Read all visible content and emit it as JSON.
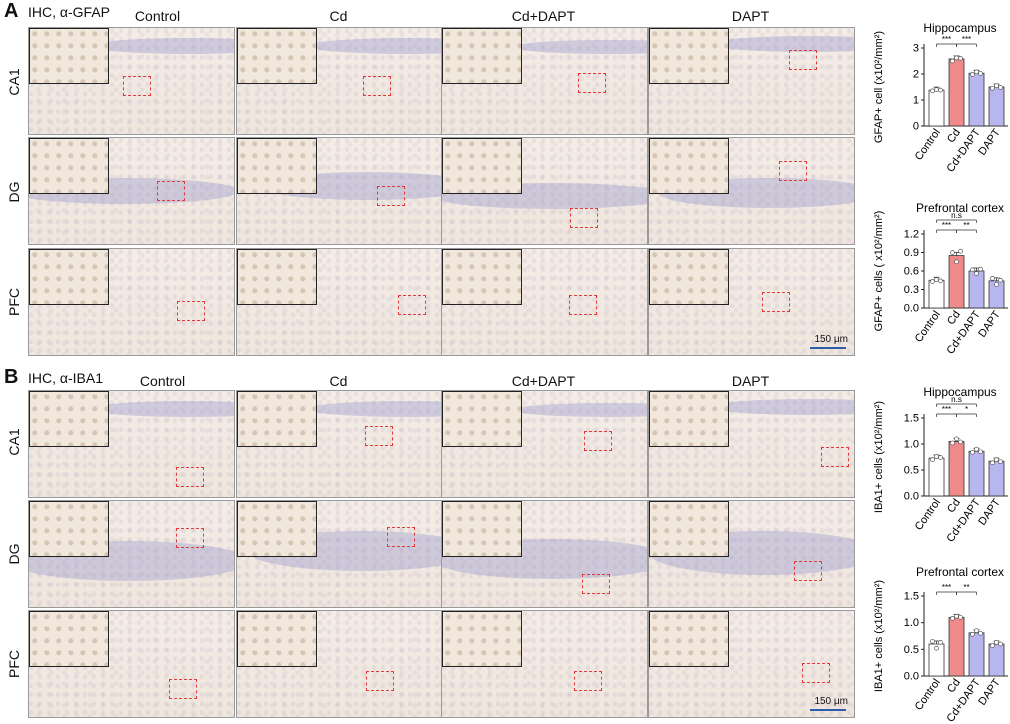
{
  "panels": [
    {
      "letter": "A",
      "stain_label": "IHC, α-GFAP",
      "columns": [
        "Control",
        "Cd",
        "Cd+DAPT",
        "DAPT"
      ],
      "rows": [
        "CA1",
        "DG",
        "PFC"
      ],
      "scale_bar_label": "150 μm"
    },
    {
      "letter": "B",
      "stain_label": "IHC, α-IBA1",
      "columns": [
        "Control",
        "Cd",
        "Cd+DAPT",
        "DAPT"
      ],
      "rows": [
        "CA1",
        "DG",
        "PFC"
      ],
      "scale_bar_label": "150 μm"
    }
  ],
  "colors": {
    "Control": "#ffffff",
    "Cd": "#f08a8a",
    "Cd+DAPT": "#b8b6ee",
    "DAPT": "#b8b6ee",
    "outline": "#333333",
    "roi": "#e03a3a",
    "scale_bar": "#2a5caa"
  },
  "chart_data": [
    {
      "type": "bar",
      "title": "Hippocampus",
      "ylabel": "GFAP+ cell (x10²/mm²)",
      "categories": [
        "Control",
        "Cd",
        "Cd+DAPT",
        "DAPT"
      ],
      "values": [
        1.38,
        2.58,
        2.03,
        1.5
      ],
      "points": [
        [
          1.35,
          1.4,
          1.38
        ],
        [
          2.5,
          2.62,
          2.6
        ],
        [
          1.98,
          2.08,
          2.02
        ],
        [
          1.45,
          1.55,
          1.48
        ]
      ],
      "ylim": [
        0,
        3
      ],
      "yticks": [
        "0",
        "1",
        "2",
        "3"
      ],
      "significance": [
        {
          "from": 0,
          "to": 1,
          "label": "***"
        },
        {
          "from": 1,
          "to": 2,
          "label": "***"
        }
      ]
    },
    {
      "type": "bar",
      "title": "Prefrontal cortex",
      "ylabel": "GFAP+ cells ( x10²/mm²)",
      "categories": [
        "Control",
        "Cd",
        "Cd+DAPT",
        "DAPT"
      ],
      "values": [
        0.45,
        0.85,
        0.6,
        0.44
      ],
      "points": [
        [
          0.43,
          0.46,
          0.44
        ],
        [
          0.9,
          0.75,
          0.92
        ],
        [
          0.62,
          0.56,
          0.63
        ],
        [
          0.48,
          0.38,
          0.45
        ]
      ],
      "ylim": [
        0,
        1.2
      ],
      "yticks": [
        "0.0",
        "0.3",
        "0.6",
        "0.9",
        "1.2"
      ],
      "significance": [
        {
          "from": 0,
          "to": 1,
          "label": "***"
        },
        {
          "from": 1,
          "to": 2,
          "label": "**"
        },
        {
          "from": 0,
          "to": 2,
          "label": "n.s"
        }
      ]
    },
    {
      "type": "bar",
      "title": "Hippocampus",
      "ylabel": "IBA1+ cells (x10²/mm²)",
      "categories": [
        "Control",
        "Cd",
        "Cd+DAPT",
        "DAPT"
      ],
      "values": [
        0.73,
        1.05,
        0.86,
        0.67
      ],
      "points": [
        [
          0.7,
          0.76,
          0.74
        ],
        [
          1.02,
          1.1,
          1.04
        ],
        [
          0.84,
          0.9,
          0.85
        ],
        [
          0.64,
          0.7,
          0.66
        ]
      ],
      "ylim": [
        0,
        1.5
      ],
      "yticks": [
        "0.0",
        "0.5",
        "1.0",
        "1.5"
      ],
      "significance": [
        {
          "from": 0,
          "to": 1,
          "label": "***"
        },
        {
          "from": 1,
          "to": 2,
          "label": "*"
        },
        {
          "from": 0,
          "to": 2,
          "label": "n.s"
        }
      ]
    },
    {
      "type": "bar",
      "title": "Prefrontal cortex",
      "ylabel": "IBA1+ cells (x10²/mm²)",
      "categories": [
        "Control",
        "Cd",
        "Cd+DAPT",
        "DAPT"
      ],
      "values": [
        0.6,
        1.1,
        0.81,
        0.6
      ],
      "points": [
        [
          0.65,
          0.52,
          0.63
        ],
        [
          1.08,
          1.12,
          1.1
        ],
        [
          0.78,
          0.85,
          0.8
        ],
        [
          0.57,
          0.63,
          0.6
        ]
      ],
      "ylim": [
        0,
        1.5
      ],
      "yticks": [
        "0.0",
        "0.5",
        "1.0",
        "1.5"
      ],
      "significance": [
        {
          "from": 0,
          "to": 1,
          "label": "***"
        },
        {
          "from": 1,
          "to": 2,
          "label": "**"
        }
      ]
    }
  ]
}
